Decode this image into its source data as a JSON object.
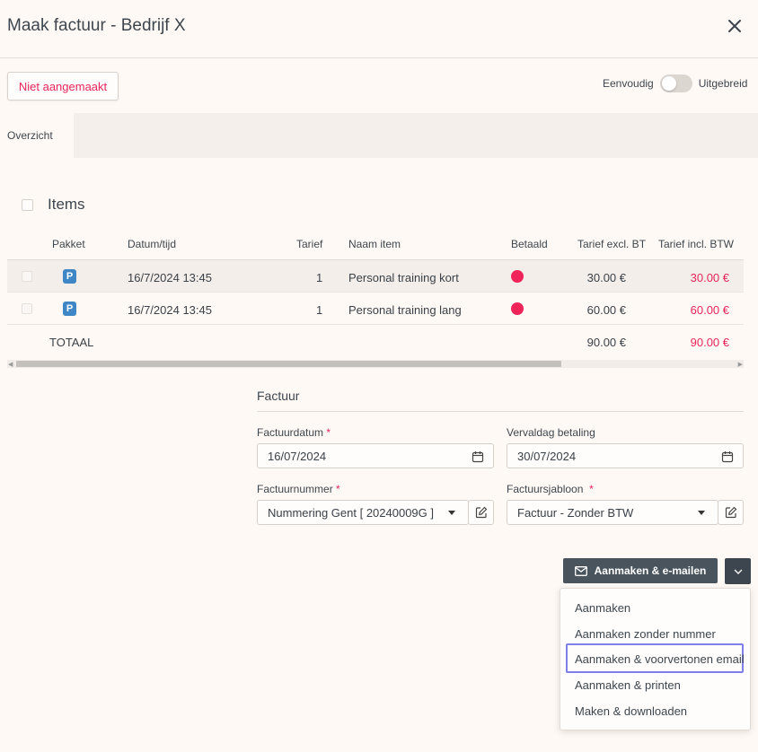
{
  "header": {
    "title": "Maak factuur - Bedrijf X"
  },
  "status_button": "Niet aangemaakt",
  "mode_toggle": {
    "left_label": "Eenvoudig",
    "right_label": "Uitgebreid"
  },
  "tabs": {
    "active": "Overzicht"
  },
  "items": {
    "title": "Items",
    "columns": {
      "pakket": "Pakket",
      "datum": "Datum/tijd",
      "tarief": "Tarief",
      "naam": "Naam item",
      "betaald": "Betaald",
      "excl": "Tarief excl. BTW",
      "incl": "Tarief incl. BTW"
    },
    "rows": [
      {
        "badge": "P",
        "datum": "16/7/2024 13:45",
        "tarief": "1",
        "naam": "Personal training kort",
        "excl": "30.00 €",
        "incl": "30.00 €"
      },
      {
        "badge": "P",
        "datum": "16/7/2024 13:45",
        "tarief": "1",
        "naam": "Personal training lang",
        "excl": "60.00 €",
        "incl": "60.00 €"
      }
    ],
    "total": {
      "label": "TOTAAL",
      "excl": "90.00 €",
      "incl": "90.00 €"
    }
  },
  "factuur": {
    "title": "Factuur",
    "factuurdatum": {
      "label": "Factuurdatum",
      "value": "16/07/2024"
    },
    "vervaldag": {
      "label": "Vervaldag betaling",
      "value": "30/07/2024"
    },
    "factuurnummer": {
      "label": "Factuurnummer",
      "value": "Nummering Gent [ 20240009G ]"
    },
    "sjabloon": {
      "label": "Factuursjabloon",
      "value": "Factuur - Zonder BTW"
    }
  },
  "actions": {
    "primary": "Aanmaken & e-mailen",
    "menu": [
      "Aanmaken",
      "Aanmaken zonder nummer",
      "Aanmaken & voorvertonen email",
      "Aanmaken & printen",
      "Maken & downloaden"
    ]
  },
  "colors": {
    "accent": "#e8245a",
    "primary": "#49545c",
    "highlight": "#7f7fe8",
    "badge": "#3f86c7"
  }
}
